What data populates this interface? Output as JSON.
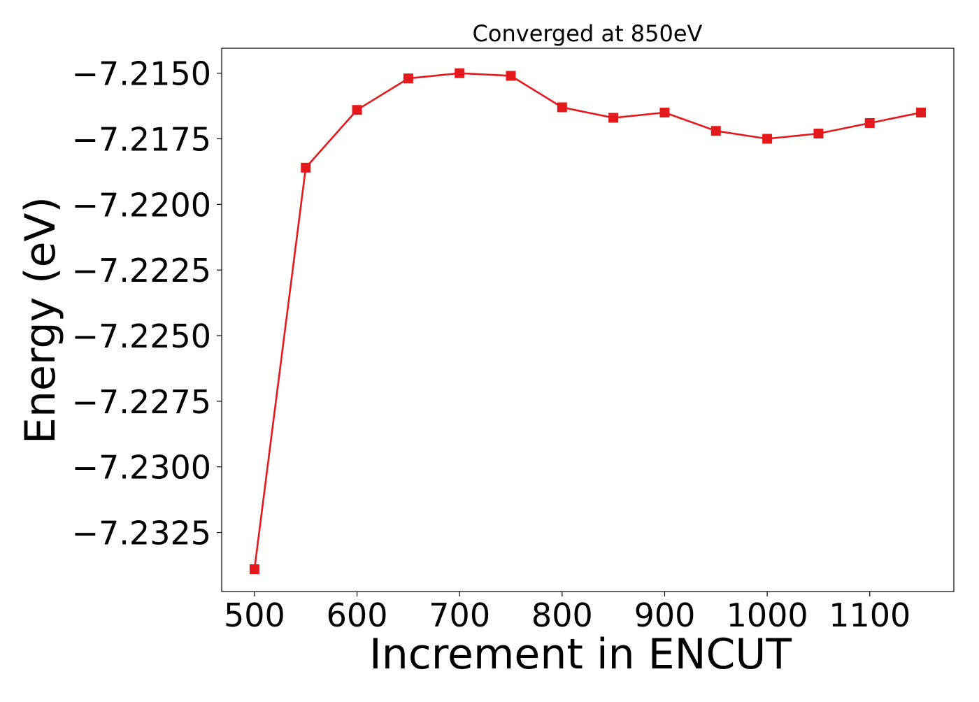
{
  "chart_data": {
    "type": "line",
    "title": "Converged at 850eV",
    "xlabel": "Increment in ENCUT",
    "ylabel": "Energy (eV)",
    "x": [
      500,
      550,
      600,
      650,
      700,
      750,
      800,
      850,
      900,
      950,
      1000,
      1050,
      1100,
      1150
    ],
    "series": [
      {
        "values": [
          -7.2339,
          -7.2186,
          -7.2164,
          -7.2152,
          -7.215,
          -7.2151,
          -7.2163,
          -7.2167,
          -7.2165,
          -7.2172,
          -7.2175,
          -7.2173,
          -7.2169,
          -7.2165
        ],
        "color": "#e4191c",
        "marker": "square"
      }
    ],
    "xlim": [
      468,
      1182
    ],
    "ylim": [
      -7.23475,
      -7.21405
    ],
    "xticks": [
      500,
      600,
      700,
      800,
      900,
      1000,
      1100
    ],
    "yticks": [
      -7.2325,
      -7.23,
      -7.2275,
      -7.225,
      -7.2225,
      -7.22,
      -7.2175,
      -7.215
    ],
    "xtick_labels": [
      "500",
      "600",
      "700",
      "800",
      "900",
      "1000",
      "1100"
    ],
    "ytick_labels": [
      "−7.2325",
      "−7.2300",
      "−7.2275",
      "−7.2250",
      "−7.2225",
      "−7.2200",
      "−7.2175",
      "−7.2150"
    ],
    "grid": false,
    "legend": "none"
  }
}
